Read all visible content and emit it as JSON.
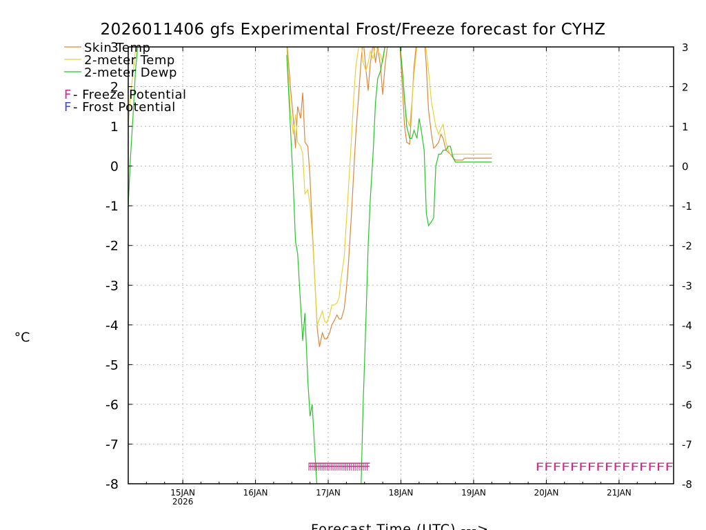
{
  "chart_data": {
    "type": "line",
    "title": "2026011406 gfs Experimental Frost/Freeze forecast for CYHZ",
    "xlabel": "Forecast Time (UTC) --->",
    "ylabel": "°C",
    "ylim": [
      -8,
      3
    ],
    "xlim_days": [
      14.25,
      21.75
    ],
    "y_ticks": [
      "-8",
      "-7",
      "-6",
      "-5",
      "-4",
      "-3",
      "-2",
      "-1",
      "0",
      "1",
      "2",
      "3"
    ],
    "x_ticks": [
      {
        "day": 15,
        "label": "15JAN",
        "sub": "2026"
      },
      {
        "day": 16,
        "label": "16JAN",
        "sub": ""
      },
      {
        "day": 17,
        "label": "17JAN",
        "sub": ""
      },
      {
        "day": 18,
        "label": "18JAN",
        "sub": ""
      },
      {
        "day": 19,
        "label": "19JAN",
        "sub": ""
      },
      {
        "day": 20,
        "label": "20JAN",
        "sub": ""
      },
      {
        "day": 21,
        "label": "21JAN",
        "sub": ""
      }
    ],
    "grid": true,
    "legend": [
      {
        "label": "Skin Temp",
        "color": "#e0853c"
      },
      {
        "label": "2-meter Temp",
        "color": "#e8d23a"
      },
      {
        "label": "2-meter Dewp",
        "color": "#22c822"
      }
    ],
    "potential_legend": [
      {
        "letter": "F",
        "text": " - Freeze Potential",
        "color": "#d6258a"
      },
      {
        "letter": "F",
        "text": " - Frost Potential",
        "color": "#3c4ad6"
      }
    ],
    "series": [
      {
        "name": "Skin Temp",
        "color": "#e0853c",
        "x": [
          16.43,
          16.48,
          16.52,
          16.55,
          16.58,
          16.62,
          16.65,
          16.68,
          16.72,
          16.75,
          16.78,
          16.82,
          16.85,
          16.88,
          16.92,
          16.95,
          16.98,
          17.02,
          17.05,
          17.08,
          17.12,
          17.15,
          17.18,
          17.22,
          17.25,
          17.28,
          17.32,
          17.35,
          17.38,
          17.42,
          17.45,
          17.48,
          17.52,
          17.55,
          17.58,
          17.62,
          17.65,
          17.68,
          17.72,
          17.75,
          17.78,
          17.82,
          17.85,
          17.88,
          17.92,
          17.95,
          17.98,
          18.02,
          18.05,
          18.08,
          18.12,
          18.15,
          18.18,
          18.22,
          18.25,
          18.28,
          18.32,
          18.35,
          18.38,
          18.42,
          18.45,
          18.48,
          18.52,
          18.55,
          18.58,
          18.62,
          18.65,
          18.68,
          18.72,
          18.75,
          18.78,
          18.82,
          18.85,
          18.88,
          18.92,
          18.95,
          18.98,
          19.02,
          19.05,
          19.08,
          19.12,
          19.15,
          19.18,
          19.22,
          19.25
        ],
        "values": [
          3.2,
          2.0,
          1.2,
          0.45,
          1.5,
          1.2,
          1.85,
          0.6,
          0.5,
          -0.3,
          -1.5,
          -3.0,
          -4.1,
          -4.55,
          -4.2,
          -4.35,
          -4.35,
          -4.2,
          -4.0,
          -3.9,
          -3.75,
          -3.85,
          -3.85,
          -3.6,
          -3.1,
          -2.4,
          -1.2,
          -0.2,
          0.8,
          1.8,
          2.6,
          3.2,
          2.4,
          1.9,
          2.6,
          3.1,
          2.6,
          3.0,
          2.5,
          1.8,
          2.5,
          3.1,
          3.3,
          3.4,
          3.6,
          3.8,
          3.2,
          2.0,
          1.0,
          0.6,
          0.55,
          1.5,
          2.5,
          3.2,
          3.5,
          3.6,
          3.3,
          2.5,
          1.4,
          0.8,
          0.45,
          0.5,
          0.6,
          0.8,
          0.7,
          0.4,
          0.35,
          0.3,
          0.2,
          0.15,
          0.15,
          0.15,
          0.15,
          0.2,
          0.2,
          0.2,
          0.2,
          0.2,
          0.2,
          0.2,
          0.2,
          0.2,
          0.2,
          0.2,
          0.2
        ]
      },
      {
        "name": "2-meter Temp",
        "color": "#e8d23a",
        "x": [
          14.25,
          14.28,
          14.32,
          14.35,
          14.38,
          14.42,
          16.43,
          16.48,
          16.52,
          16.55,
          16.58,
          16.62,
          16.65,
          16.68,
          16.72,
          16.75,
          16.78,
          16.82,
          16.85,
          16.88,
          16.92,
          16.95,
          16.98,
          17.02,
          17.05,
          17.08,
          17.12,
          17.15,
          17.18,
          17.22,
          17.25,
          17.28,
          17.32,
          17.35,
          17.38,
          17.42,
          17.45,
          17.48,
          17.52,
          17.55,
          17.58,
          17.62,
          17.65,
          17.68,
          17.72,
          17.75,
          17.78,
          17.82,
          17.85,
          17.88,
          17.92,
          17.95,
          17.98,
          18.02,
          18.05,
          18.08,
          18.12,
          18.15,
          18.18,
          18.22,
          18.25,
          18.28,
          18.32,
          18.35,
          18.38,
          18.42,
          18.45,
          18.48,
          18.52,
          18.55,
          18.58,
          18.62,
          18.65,
          18.68,
          18.72,
          18.75,
          18.78,
          18.82,
          18.85,
          18.88,
          18.92,
          18.95,
          18.98,
          19.02,
          19.05,
          19.08,
          19.12,
          19.15,
          19.18,
          19.22,
          19.25
        ],
        "values": [
          1.0,
          1.8,
          2.4,
          2.9,
          3.1,
          3.3,
          3.0,
          1.4,
          0.8,
          1.3,
          0.6,
          0.5,
          0.3,
          -0.7,
          -0.6,
          -1.0,
          -1.7,
          -3.0,
          -4.0,
          -3.85,
          -3.65,
          -3.9,
          -3.95,
          -3.75,
          -3.5,
          -3.5,
          -3.45,
          -3.3,
          -2.8,
          -2.3,
          -1.4,
          -0.5,
          0.7,
          1.7,
          2.5,
          3.0,
          3.2,
          2.6,
          2.4,
          2.6,
          2.9,
          2.7,
          3.1,
          2.9,
          2.8,
          2.6,
          3.0,
          3.1,
          3.3,
          3.5,
          3.6,
          3.7,
          3.3,
          2.4,
          1.6,
          1.2,
          1.0,
          1.6,
          2.3,
          3.0,
          3.4,
          3.5,
          3.3,
          2.9,
          2.4,
          1.6,
          1.3,
          1.0,
          0.8,
          0.95,
          1.05,
          0.6,
          0.4,
          0.3,
          0.3,
          0.3,
          0.3,
          0.3,
          0.3,
          0.3,
          0.3,
          0.3,
          0.3,
          0.3,
          0.3,
          0.3,
          0.3,
          0.3,
          0.3,
          0.3,
          0.3
        ]
      },
      {
        "name": "2-meter Dewp",
        "color": "#22c822",
        "x": [
          14.25,
          14.28,
          14.32,
          14.35,
          14.38,
          14.42,
          14.45,
          16.43,
          16.48,
          16.52,
          16.55,
          16.58,
          16.62,
          16.65,
          16.68,
          16.72,
          16.75,
          16.78,
          16.82,
          16.85,
          17.45,
          17.48,
          17.52,
          17.55,
          17.58,
          17.62,
          17.65,
          17.68,
          17.72,
          17.75,
          17.78,
          17.82,
          17.85,
          17.88,
          17.92,
          17.95,
          17.98,
          18.02,
          18.05,
          18.08,
          18.12,
          18.15,
          18.18,
          18.22,
          18.25,
          18.28,
          18.32,
          18.35,
          18.38,
          18.42,
          18.45,
          18.48,
          18.52,
          18.55,
          18.58,
          18.62,
          18.65,
          18.68,
          18.72,
          18.75,
          18.78,
          18.82,
          18.85,
          18.88,
          18.92,
          18.95,
          18.98,
          19.02,
          19.05,
          19.08,
          19.12,
          19.15,
          19.18,
          19.22,
          19.25
        ],
        "values": [
          -1.0,
          0.2,
          1.4,
          2.4,
          3.0,
          3.3,
          3.5,
          2.8,
          1.0,
          -0.5,
          -1.9,
          -2.2,
          -3.5,
          -4.4,
          -3.7,
          -5.4,
          -6.3,
          -6.0,
          -7.3,
          -8.2,
          -8.2,
          -6.0,
          -3.8,
          -2.0,
          -0.8,
          0.4,
          1.6,
          2.2,
          2.4,
          2.7,
          3.0,
          3.1,
          3.2,
          3.3,
          3.6,
          3.7,
          3.2,
          2.4,
          1.7,
          1.0,
          0.7,
          0.7,
          0.9,
          0.7,
          1.2,
          0.9,
          0.4,
          -1.2,
          -1.5,
          -1.4,
          -1.3,
          0.0,
          0.3,
          0.3,
          0.4,
          0.4,
          0.5,
          0.5,
          0.2,
          0.1,
          0.1,
          0.1,
          0.1,
          0.1,
          0.1,
          0.1,
          0.1,
          0.1,
          0.1,
          0.1,
          0.1,
          0.1,
          0.1,
          0.1,
          0.1
        ]
      }
    ],
    "potential_marks": [
      {
        "type": "Freeze",
        "letter": "F",
        "color": "#d6258a",
        "start_day": 16.72,
        "end_day": 17.55,
        "count": 30
      },
      {
        "type": "Freeze",
        "letter": "F",
        "color": "#d6258a",
        "start_day": 19.85,
        "end_day": 21.75,
        "count": 16
      }
    ]
  }
}
